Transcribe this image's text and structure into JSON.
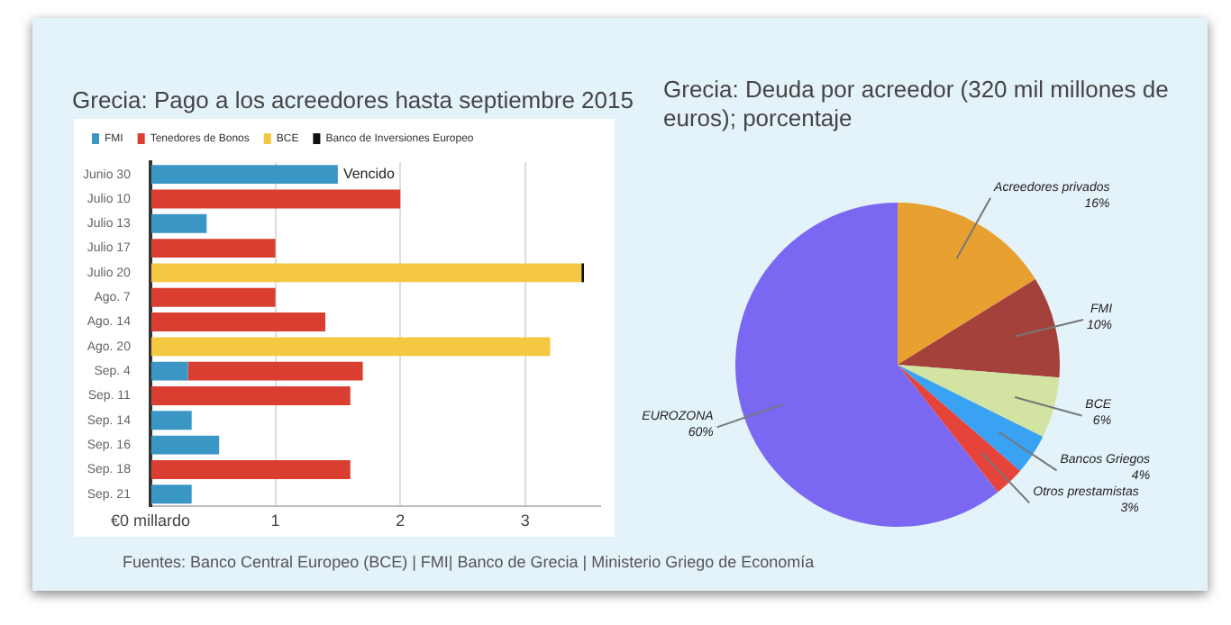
{
  "chart_data": [
    {
      "type": "bar",
      "orientation": "horizontal",
      "stacked": true,
      "title": "Grecia: Pago a los acreedores hasta septiembre 2015",
      "categories": [
        "Junio 30",
        "Julio 10",
        "Julio 13",
        "Julio 17",
        "Julio 20",
        "Ago. 7",
        "Ago. 14",
        "Ago. 20",
        "Sep. 4",
        "Sep. 11",
        "Sep. 14",
        "Sep. 16",
        "Sep. 18",
        "Sep. 21"
      ],
      "series": [
        {
          "name": "FMI",
          "color": "#3a96c4",
          "values": [
            1.5,
            null,
            0.45,
            null,
            null,
            null,
            null,
            null,
            0.3,
            null,
            0.33,
            0.55,
            null,
            0.33
          ]
        },
        {
          "name": "Tenedores de Bonos",
          "color": "#d93e30",
          "values": [
            null,
            2.0,
            null,
            1.0,
            null,
            1.0,
            1.4,
            null,
            1.4,
            1.6,
            null,
            null,
            1.6,
            null
          ]
        },
        {
          "name": "BCE",
          "color": "#f5c842",
          "values": [
            null,
            null,
            null,
            null,
            3.45,
            null,
            null,
            3.2,
            null,
            null,
            null,
            null,
            null,
            null
          ]
        },
        {
          "name": "Banco de Inversiones Europeo",
          "color": "#111111",
          "values": [
            null,
            null,
            null,
            null,
            0.02,
            null,
            null,
            null,
            null,
            null,
            null,
            null,
            null,
            null
          ]
        }
      ],
      "xlim": [
        0,
        3.6
      ],
      "xticks": [
        {
          "value": 0,
          "label": "€0 millardo"
        },
        1,
        2,
        3
      ],
      "grid": "x",
      "legend": "top",
      "annotations": [
        {
          "text": "Vencido",
          "x": 1.5,
          "y": "Junio 30"
        },
        "Fuentes: Banco Central Europeo  (BCE) | FMI|  Banco de Grecia | Ministerio Griego de Economía"
      ]
    },
    {
      "type": "pie",
      "title": "Grecia: Deuda por acreedor (320 mil millones de euros); porcentaje",
      "categories": [
        "Acreedores privados",
        "FMI",
        "BCE",
        "Bancos Griegos",
        "Otros prestamistas",
        "EUROZONA"
      ],
      "values": [
        16,
        10,
        6,
        4,
        3,
        60
      ],
      "colors": [
        "#e8a030",
        "#a3413a",
        "#d2e3a2",
        "#3aa2f2",
        "#e6443a",
        "#7b68f2"
      ],
      "value_labels": [
        "16%",
        "10%",
        "6%",
        "4%",
        "3%",
        "60%"
      ]
    }
  ]
}
